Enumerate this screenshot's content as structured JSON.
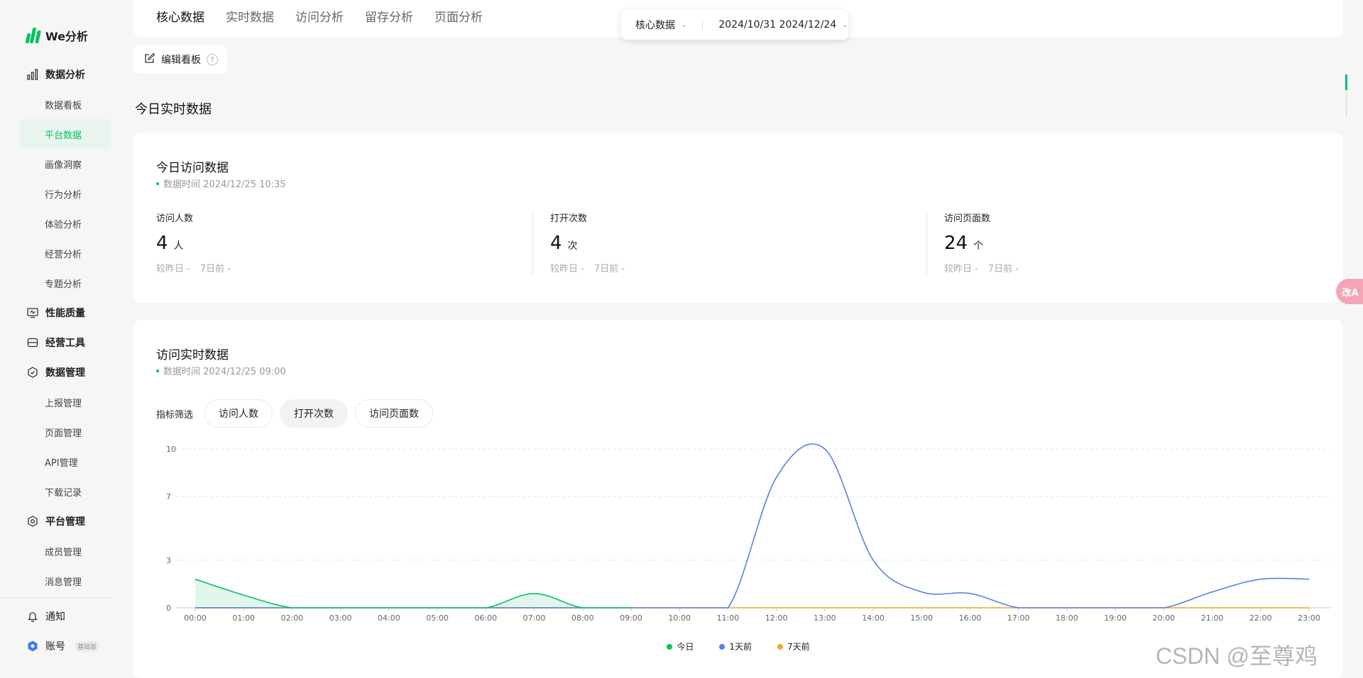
{
  "app": {
    "logo_text": "We分析"
  },
  "sidebar": {
    "groups": [
      {
        "label": "数据分析",
        "icon": "bar-chart-icon"
      },
      {
        "label": "性能质量",
        "icon": "monitor-icon"
      },
      {
        "label": "经营工具",
        "icon": "toolbox-icon"
      },
      {
        "label": "数据管理",
        "icon": "hexagon-check-icon"
      },
      {
        "label": "平台管理",
        "icon": "hexagon-gear-icon"
      }
    ],
    "items": {
      "analysis": [
        "数据看板",
        "平台数据",
        "画像洞察",
        "行为分析",
        "体验分析",
        "经营分析",
        "专题分析"
      ],
      "data_mgmt": [
        "上报管理",
        "页面管理",
        "API管理",
        "下载记录"
      ],
      "platform_mgmt": [
        "成员管理",
        "消息管理"
      ]
    },
    "active_item": "平台数据",
    "bottom": {
      "notify": "通知",
      "account": "账号",
      "account_tag": "基础版"
    }
  },
  "top_tabs": [
    "核心数据",
    "实时数据",
    "访问分析",
    "留存分析",
    "页面分析"
  ],
  "filter_bar": {
    "scope": "核心数据",
    "date_range": "2024/10/31 2024/12/24"
  },
  "edit_board": "编辑看板",
  "section_title": "今日实时数据",
  "today_card": {
    "title": "今日访问数据",
    "time": "数据时间 2024/12/25 10:35",
    "metrics": [
      {
        "label": "访问人数",
        "value": "4",
        "unit": "人",
        "vs_yesterday": "较昨日 -",
        "vs_7d": "7日前 -"
      },
      {
        "label": "打开次数",
        "value": "4",
        "unit": "次",
        "vs_yesterday": "较昨日 -",
        "vs_7d": "7日前 -"
      },
      {
        "label": "访问页面数",
        "value": "24",
        "unit": "个",
        "vs_yesterday": "较昨日 -",
        "vs_7d": "7日前 -"
      }
    ]
  },
  "realtime_card": {
    "title": "访问实时数据",
    "time": "数据时间 2024/12/25 09:00",
    "filter_label": "指标筛选",
    "filter_chips": [
      "访问人数",
      "打开次数",
      "访问页面数"
    ],
    "active_chip": "打开次数"
  },
  "chart_data": {
    "type": "line",
    "x": [
      "00:00",
      "01:00",
      "02:00",
      "03:00",
      "04:00",
      "05:00",
      "06:00",
      "07:00",
      "08:00",
      "09:00",
      "10:00",
      "11:00",
      "12:00",
      "13:00",
      "14:00",
      "15:00",
      "16:00",
      "17:00",
      "18:00",
      "19:00",
      "20:00",
      "21:00",
      "22:00",
      "23:00"
    ],
    "yticks": [
      0,
      3,
      7,
      10
    ],
    "ylim": [
      0,
      10
    ],
    "grid": true,
    "legend_position": "bottom",
    "series": [
      {
        "name": "今日",
        "color": "#07c160",
        "values": [
          1.8,
          0.8,
          0,
          0,
          0,
          0,
          0,
          0.9,
          0,
          0,
          null,
          null,
          null,
          null,
          null,
          null,
          null,
          null,
          null,
          null,
          null,
          null,
          null,
          null
        ]
      },
      {
        "name": "1天前",
        "color": "#5b7ee5",
        "values": [
          0,
          0,
          0,
          0,
          0,
          0,
          0,
          0,
          0,
          0,
          0,
          0,
          8.2,
          10,
          3,
          1,
          0.9,
          0,
          0,
          0,
          0,
          1,
          1.8,
          1.8
        ]
      },
      {
        "name": "7天前",
        "color": "#f5a623",
        "values": [
          0,
          0,
          0,
          0,
          0,
          0,
          0,
          0,
          0,
          0,
          0,
          0,
          0,
          0,
          0,
          0,
          0,
          0,
          0,
          0,
          0,
          0,
          0,
          0
        ]
      }
    ]
  },
  "float_button": "改A",
  "watermark": "CSDN @至尊鸡",
  "colors": {
    "accent": "#07c160",
    "active_bg": "#e8f5ee"
  }
}
